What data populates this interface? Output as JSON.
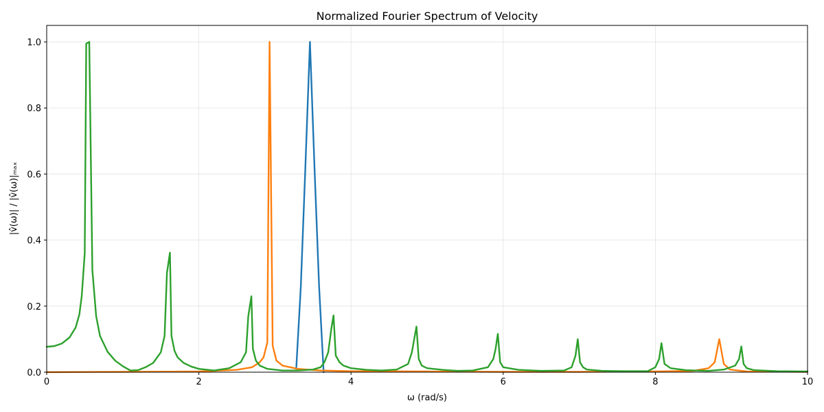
{
  "chart_data": {
    "type": "line",
    "title": "Normalized Fourier Spectrum of Velocity",
    "xlabel": "ω (rad/s)",
    "ylabel": "|v̂(ω)| / |v̂(ω)|ₘₐₓ",
    "xlim": [
      0,
      10
    ],
    "ylim": [
      0,
      1.05
    ],
    "xticks": [
      "0",
      "2",
      "4",
      "6",
      "8",
      "10"
    ],
    "yticks": [
      "0.0",
      "0.2",
      "0.4",
      "0.6",
      "0.8",
      "1.0"
    ],
    "grid": true,
    "series": [
      {
        "color": "#1f77b4",
        "x": [
          3.28,
          3.34,
          3.4,
          3.46,
          3.52,
          3.58,
          3.64
        ],
        "y": [
          0.01,
          0.26,
          0.62,
          1.0,
          0.62,
          0.26,
          0.0
        ]
      },
      {
        "color": "#ff7f0e",
        "x": [
          0,
          1.0,
          2.0,
          2.5,
          2.7,
          2.8,
          2.85,
          2.9,
          2.93,
          2.97,
          3.02,
          3.1,
          3.3,
          3.6,
          4.0,
          5.0,
          6.0,
          7.0,
          8.0,
          8.5,
          8.7,
          8.78,
          8.84,
          8.9,
          8.98,
          9.2,
          10.0
        ],
        "y": [
          0.0,
          0.001,
          0.002,
          0.007,
          0.015,
          0.03,
          0.045,
          0.09,
          1.0,
          0.08,
          0.035,
          0.02,
          0.01,
          0.005,
          0.003,
          0.002,
          0.001,
          0.001,
          0.002,
          0.004,
          0.012,
          0.03,
          0.1,
          0.025,
          0.008,
          0.002,
          0.001
        ]
      },
      {
        "color": "#2ca02c",
        "x": [
          0,
          0.1,
          0.2,
          0.3,
          0.38,
          0.43,
          0.46,
          0.5,
          0.52,
          0.56,
          0.6,
          0.65,
          0.7,
          0.8,
          0.9,
          1.0,
          1.1,
          1.2,
          1.3,
          1.4,
          1.5,
          1.55,
          1.58,
          1.62,
          1.64,
          1.68,
          1.72,
          1.8,
          1.9,
          2.0,
          2.2,
          2.4,
          2.55,
          2.62,
          2.65,
          2.69,
          2.71,
          2.75,
          2.8,
          2.9,
          3.1,
          3.3,
          3.5,
          3.6,
          3.65,
          3.7,
          3.74,
          3.77,
          3.8,
          3.85,
          3.9,
          4.0,
          4.2,
          4.4,
          4.6,
          4.75,
          4.8,
          4.83,
          4.86,
          4.89,
          4.93,
          5.0,
          5.2,
          5.4,
          5.6,
          5.8,
          5.87,
          5.9,
          5.93,
          5.96,
          6.0,
          6.2,
          6.5,
          6.8,
          6.9,
          6.95,
          6.98,
          7.01,
          7.05,
          7.1,
          7.3,
          7.6,
          7.9,
          8.0,
          8.05,
          8.08,
          8.12,
          8.2,
          8.4,
          8.7,
          8.9,
          9.05,
          9.1,
          9.13,
          9.16,
          9.2,
          9.3,
          9.6,
          10.0
        ],
        "y": [
          0.077,
          0.079,
          0.087,
          0.105,
          0.135,
          0.175,
          0.23,
          0.36,
          0.995,
          1.0,
          0.31,
          0.17,
          0.11,
          0.062,
          0.035,
          0.018,
          0.005,
          0.006,
          0.015,
          0.028,
          0.06,
          0.11,
          0.3,
          0.362,
          0.11,
          0.065,
          0.045,
          0.028,
          0.017,
          0.01,
          0.005,
          0.012,
          0.03,
          0.06,
          0.17,
          0.23,
          0.07,
          0.035,
          0.02,
          0.01,
          0.005,
          0.005,
          0.008,
          0.015,
          0.03,
          0.06,
          0.13,
          0.172,
          0.05,
          0.03,
          0.02,
          0.012,
          0.007,
          0.005,
          0.008,
          0.025,
          0.06,
          0.1,
          0.138,
          0.04,
          0.02,
          0.012,
          0.007,
          0.004,
          0.005,
          0.015,
          0.04,
          0.07,
          0.116,
          0.03,
          0.015,
          0.007,
          0.004,
          0.005,
          0.015,
          0.05,
          0.1,
          0.03,
          0.015,
          0.008,
          0.004,
          0.003,
          0.003,
          0.015,
          0.04,
          0.088,
          0.025,
          0.012,
          0.006,
          0.004,
          0.008,
          0.02,
          0.04,
          0.078,
          0.025,
          0.012,
          0.006,
          0.003,
          0.002
        ]
      }
    ]
  }
}
